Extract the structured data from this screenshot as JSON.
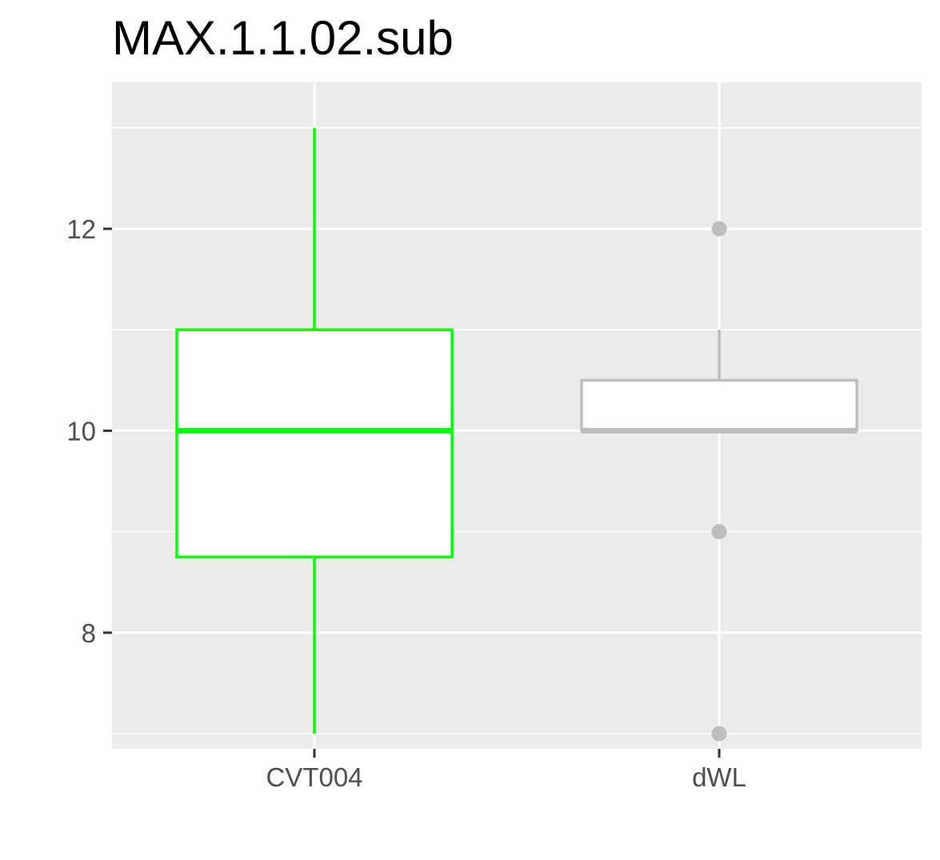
{
  "chart_data": {
    "type": "boxplot",
    "title": "MAX.1.1.02.sub",
    "xlabel": "",
    "ylabel": "",
    "ylim": [
      6.85,
      13.45
    ],
    "y_ticks": [
      {
        "value": 8,
        "label": "8"
      },
      {
        "value": 10,
        "label": "10"
      },
      {
        "value": 12,
        "label": "12"
      }
    ],
    "y_minor_ticks": [
      7,
      9,
      11,
      13
    ],
    "grid": true,
    "legend": "none",
    "categories": [
      "CVT004",
      "dWL"
    ],
    "boxes": [
      {
        "category": "CVT004",
        "color": "#00ff00",
        "fill": "#ffffff",
        "whisker_low": 7,
        "q1": 8.75,
        "median": 10,
        "q3": 11,
        "whisker_high": 13,
        "outliers": []
      },
      {
        "category": "dWL",
        "color": "#bebebe",
        "fill": "#ffffff",
        "whisker_low": 10,
        "q1": 10,
        "median": 10,
        "q3": 10.5,
        "whisker_high": 11,
        "outliers": [
          12,
          9,
          7
        ]
      }
    ],
    "colors": {
      "panel_background": "#ebebeb",
      "grid": "#ffffff",
      "axis_text": "#4d4d4d",
      "tick_mark": "#333333"
    }
  }
}
